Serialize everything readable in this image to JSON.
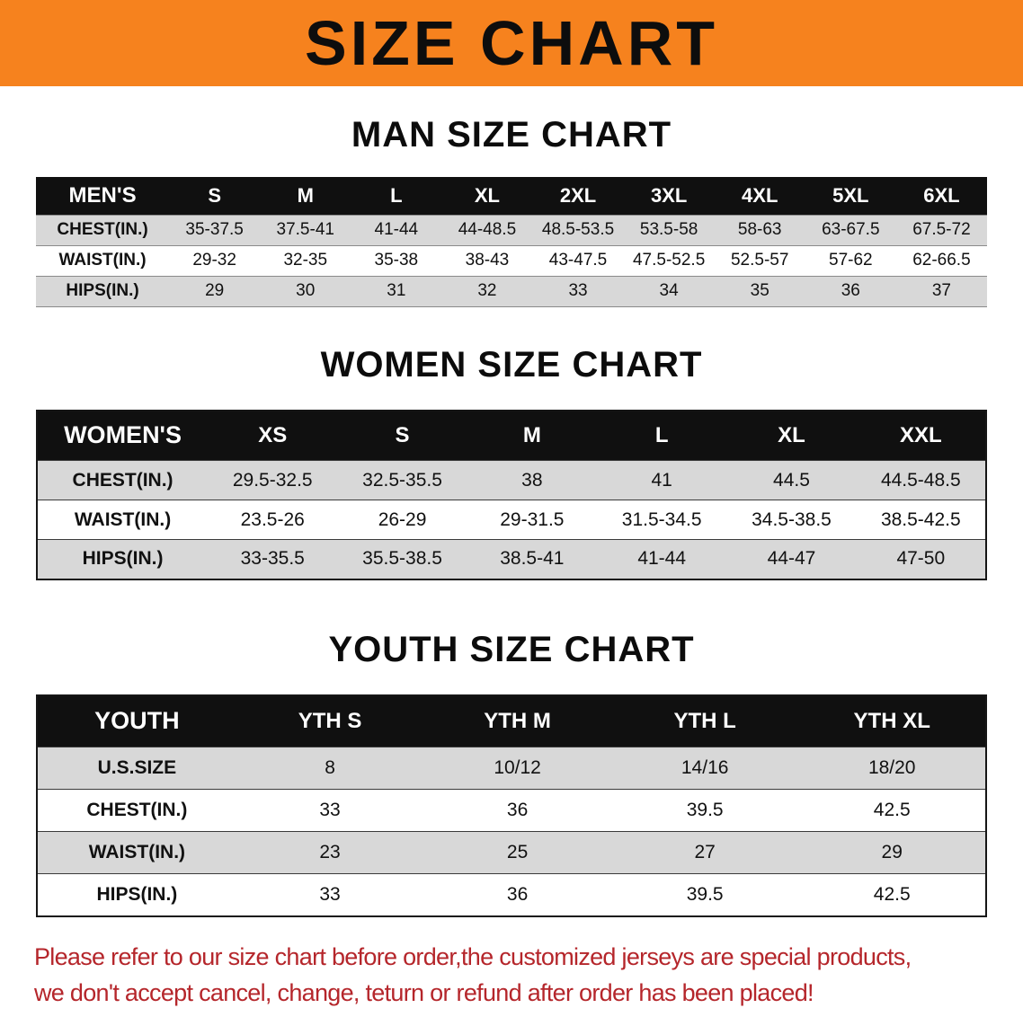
{
  "banner": {
    "title": "SIZE CHART",
    "bg_color": "#F6821E"
  },
  "sections": [
    {
      "heading": "MAN SIZE CHART",
      "table": {
        "header": [
          "MEN'S",
          "S",
          "M",
          "L",
          "XL",
          "2XL",
          "3XL",
          "4XL",
          "5XL",
          "6XL"
        ],
        "rows": [
          {
            "label": "CHEST(IN.)",
            "values": [
              "35-37.5",
              "37.5-41",
              "41-44",
              "44-48.5",
              "48.5-53.5",
              "53.5-58",
              "58-63",
              "63-67.5",
              "67.5-72"
            ]
          },
          {
            "label": "WAIST(IN.)",
            "values": [
              "29-32",
              "32-35",
              "35-38",
              "38-43",
              "43-47.5",
              "47.5-52.5",
              "52.5-57",
              "57-62",
              "62-66.5"
            ]
          },
          {
            "label": "HIPS(IN.)",
            "values": [
              "29",
              "30",
              "31",
              "32",
              "33",
              "34",
              "35",
              "36",
              "37"
            ]
          }
        ]
      }
    },
    {
      "heading": "WOMEN SIZE CHART",
      "table": {
        "header": [
          "WOMEN'S",
          "XS",
          "S",
          "M",
          "L",
          "XL",
          "XXL"
        ],
        "rows": [
          {
            "label": "CHEST(IN.)",
            "values": [
              "29.5-32.5",
              "32.5-35.5",
              "38",
              "41",
              "44.5",
              "44.5-48.5"
            ]
          },
          {
            "label": "WAIST(IN.)",
            "values": [
              "23.5-26",
              "26-29",
              "29-31.5",
              "31.5-34.5",
              "34.5-38.5",
              "38.5-42.5"
            ]
          },
          {
            "label": "HIPS(IN.)",
            "values": [
              "33-35.5",
              "35.5-38.5",
              "38.5-41",
              "41-44",
              "44-47",
              "47-50"
            ]
          }
        ]
      }
    },
    {
      "heading": "YOUTH SIZE CHART",
      "table": {
        "header": [
          "YOUTH",
          "YTH S",
          "YTH M",
          "YTH L",
          "YTH XL"
        ],
        "rows": [
          {
            "label": "U.S.SIZE",
            "values": [
              "8",
              "10/12",
              "14/16",
              "18/20"
            ]
          },
          {
            "label": "CHEST(IN.)",
            "values": [
              "33",
              "36",
              "39.5",
              "42.5"
            ]
          },
          {
            "label": "WAIST(IN.)",
            "values": [
              "23",
              "25",
              "27",
              "29"
            ]
          },
          {
            "label": "HIPS(IN.)",
            "values": [
              "33",
              "36",
              "39.5",
              "42.5"
            ]
          }
        ]
      }
    }
  ],
  "footer": {
    "line1": "Please refer to our size chart before order,the customized jerseys are special products,",
    "line2": "we don't accept cancel, change, teturn or refund after order has been placed!"
  },
  "colors": {
    "banner_orange": "#F6821E",
    "header_black": "#101010",
    "row_gray": "#D8D8D8",
    "notice_red": "#B5262B"
  }
}
